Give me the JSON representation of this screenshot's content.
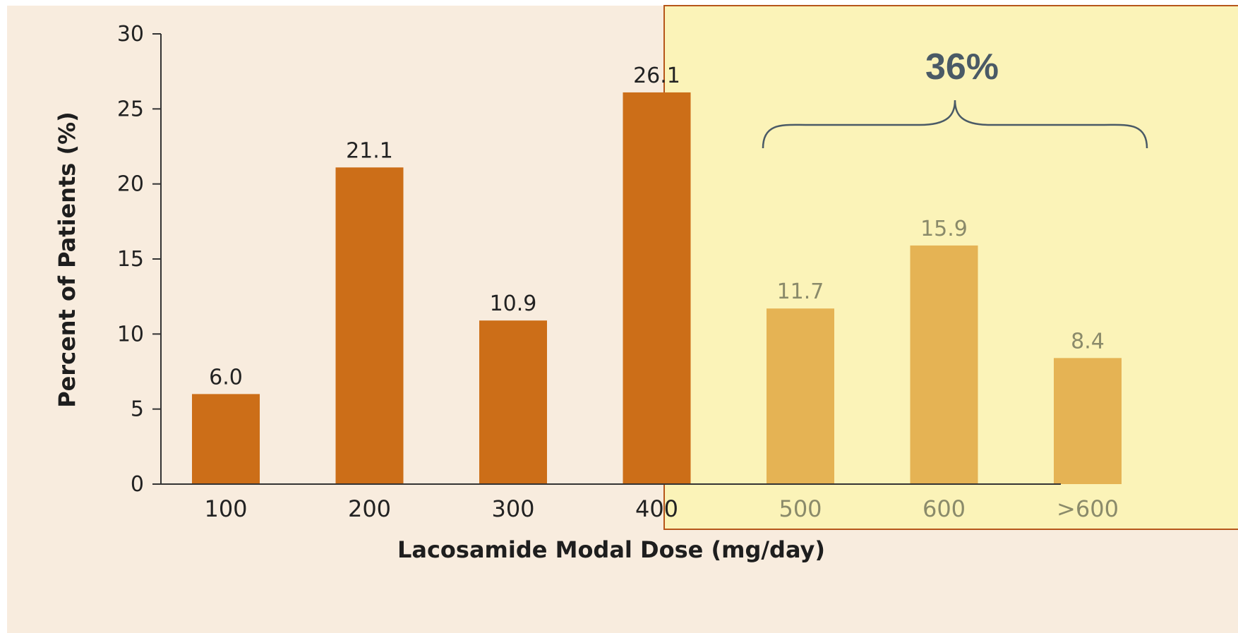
{
  "chart_data": {
    "type": "bar",
    "categories": [
      "100",
      "200",
      "300",
      "400",
      "500",
      "600",
      ">600"
    ],
    "values": [
      6.0,
      21.1,
      10.9,
      26.1,
      11.7,
      15.9,
      8.4
    ],
    "value_labels": [
      "6.0",
      "21.1",
      "10.9",
      "26.1",
      "11.7",
      "15.9",
      "8.4"
    ],
    "highlighted": [
      false,
      false,
      false,
      false,
      true,
      true,
      true
    ],
    "xlabel": "Lacosamide Modal Dose (mg/day)",
    "ylabel": "Percent of Patients (%)",
    "ylim": [
      0,
      30
    ],
    "yticks": [
      "0",
      "5",
      "10",
      "15",
      "20",
      "25",
      "30"
    ],
    "grid": false,
    "annotation": {
      "text": "36%",
      "spans_categories": [
        "500",
        "600",
        ">600"
      ]
    }
  },
  "colors": {
    "background": "#f8ecde",
    "highlight_panel": "#fbf3b8",
    "highlight_border": "#b6561a",
    "bar": "#cc6e18",
    "bar_highlight": "#e5b354",
    "text": "#222222",
    "text_highlight": "#8a8a6a",
    "annotation": "#4a5a66",
    "axis": "#333333"
  }
}
